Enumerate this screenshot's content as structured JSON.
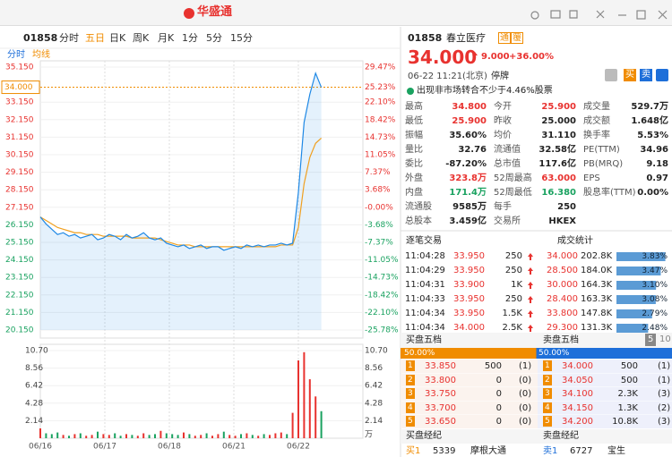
{
  "window": {
    "title": "华盛通"
  },
  "toolbar": {
    "code": "01858",
    "periods": [
      "分时",
      "五日",
      "日K",
      "周K",
      "月K",
      "1分",
      "5分",
      "15分"
    ],
    "active": 1
  },
  "legend": {
    "line": "分时",
    "avg": "均线"
  },
  "intraday_chart": {
    "type": "line",
    "ylim": [
      20.15,
      35.15
    ],
    "yticks": [
      {
        "value": 35.15,
        "label": "35.150"
      },
      {
        "value": 34,
        "label": "34.000"
      },
      {
        "value": 33.15,
        "label": "33.150"
      },
      {
        "value": 32.15,
        "label": "32.150"
      },
      {
        "value": 31.15,
        "label": "31.150"
      },
      {
        "value": 30.15,
        "label": "30.150"
      },
      {
        "value": 29.15,
        "label": "29.150"
      },
      {
        "value": 28.15,
        "label": "28.150"
      },
      {
        "value": 27.15,
        "label": "27.150"
      },
      {
        "value": 26.15,
        "label": "26.150"
      },
      {
        "value": 25.15,
        "label": "25.150"
      },
      {
        "value": 24.15,
        "label": "24.150"
      },
      {
        "value": 23.15,
        "label": "23.150"
      },
      {
        "value": 22.15,
        "label": "22.150"
      },
      {
        "value": 21.15,
        "label": "21.150"
      },
      {
        "value": 20.15,
        "label": "20.150"
      }
    ],
    "pct_labels": [
      "29.47%",
      "25.23%",
      "22.10%",
      "18.42%",
      "14.73%",
      "11.05%",
      "7.37%",
      "3.68%",
      "-0.00%",
      "-3.68%",
      "-7.37%",
      "-11.05%",
      "-14.73%",
      "-18.42%",
      "-22.10%",
      "-25.78%"
    ],
    "highlight_tick": 1,
    "dates": [
      "06/16",
      "06/17",
      "06/18",
      "06/21",
      "06/22"
    ],
    "price": [
      26.6,
      26.2,
      25.9,
      25.6,
      25.7,
      25.5,
      25.6,
      25.4,
      25.5,
      25.6,
      25.3,
      25.4,
      25.6,
      25.5,
      25.3,
      25.6,
      25.4,
      25.5,
      25.7,
      25.4,
      25.3,
      25.4,
      25.1,
      25.0,
      24.9,
      25.0,
      24.8,
      24.9,
      25.0,
      24.8,
      24.9,
      24.9,
      24.7,
      24.8,
      24.9,
      24.8,
      25.0,
      24.9,
      25.0,
      24.9,
      25.0,
      25.0,
      25.1,
      25.0,
      25.1,
      28.0,
      32.0,
      33.6,
      34.8,
      34.0
    ],
    "avg": [
      26.6,
      26.4,
      26.2,
      26.0,
      25.9,
      25.8,
      25.7,
      25.7,
      25.6,
      25.6,
      25.6,
      25.5,
      25.5,
      25.5,
      25.5,
      25.5,
      25.4,
      25.4,
      25.4,
      25.4,
      25.4,
      25.3,
      25.2,
      25.1,
      25.0,
      25.0,
      25.0,
      24.9,
      24.9,
      24.9,
      24.9,
      24.9,
      24.9,
      24.9,
      24.9,
      24.9,
      24.9,
      24.9,
      24.9,
      24.9,
      24.9,
      24.9,
      25.0,
      25.0,
      25.0,
      26.0,
      28.5,
      30.0,
      30.8,
      31.1
    ],
    "line_color": "#1e88e5",
    "avg_color": "#f0a020"
  },
  "volume_chart": {
    "type": "bar",
    "ylim": [
      0,
      10.7
    ],
    "yticks": [
      {
        "value": 10.7,
        "label": "10.70"
      },
      8.56,
      6.42,
      4.28,
      2.14
    ],
    "unit": "万",
    "values": [
      1.2,
      0.6,
      0.5,
      0.7,
      0.4,
      0.3,
      0.5,
      0.6,
      0.3,
      0.4,
      0.8,
      0.5,
      0.4,
      0.6,
      0.3,
      0.5,
      0.4,
      0.3,
      0.6,
      0.4,
      0.5,
      0.9,
      0.6,
      0.5,
      0.4,
      0.7,
      0.5,
      0.3,
      0.4,
      0.6,
      0.3,
      0.5,
      0.8,
      0.4,
      0.3,
      0.5,
      0.6,
      0.4,
      0.3,
      0.5,
      0.4,
      0.6,
      0.7,
      0.5,
      3.1,
      9.5,
      10.5,
      7.2,
      5.1,
      3.3
    ],
    "up_color": "#e8322f",
    "down_color": "#1aa260"
  },
  "quote": {
    "code": "01858",
    "name": "春立医疗",
    "badges": [
      "通",
      "覆"
    ],
    "price": "34.000",
    "change": "9.000",
    "change_pct": "+36.00%",
    "time": "06-22 11:21(北京)",
    "status": "停牌",
    "buy": "买",
    "sell": "卖",
    "notice": "出现非市场转合不少于4.46%股票"
  },
  "stats": [
    [
      [
        "最高",
        "34.800"
      ],
      [
        "今开",
        "25.900"
      ],
      [
        "成交量",
        "529.7万"
      ]
    ],
    [
      [
        "最低",
        "25.900"
      ],
      [
        "昨收",
        "25.000"
      ],
      [
        "成交额",
        "1.648亿"
      ]
    ],
    [
      [
        "振幅",
        "35.60%"
      ],
      [
        "均价",
        "31.110"
      ],
      [
        "换手率",
        "5.53%"
      ]
    ],
    [
      [
        "量比",
        "32.76"
      ],
      [
        "流通值",
        "32.58亿"
      ],
      [
        "PE(TTM)",
        "34.96"
      ]
    ],
    [
      [
        "委比",
        "-87.20%"
      ],
      [
        "总市值",
        "117.6亿"
      ],
      [
        "PB(MRQ)",
        "9.18"
      ]
    ],
    [
      [
        "外盘",
        "323.8万"
      ],
      [
        "52周最高",
        "63.000"
      ],
      [
        "EPS",
        "0.97"
      ]
    ],
    [
      [
        "内盘",
        "171.4万"
      ],
      [
        "52周最低",
        "16.380"
      ],
      [
        "股息率(TTM)",
        "0.00%"
      ]
    ],
    [
      [
        "流通股",
        "9585万"
      ],
      [
        "每手",
        "250"
      ]
    ],
    [
      [
        "总股本",
        "3.459亿"
      ],
      [
        "交易所",
        "HKEX"
      ]
    ]
  ],
  "trades": {
    "title": "逐笔交易",
    "rows": [
      [
        "11:04:28",
        "33.950",
        "250"
      ],
      [
        "11:04:29",
        "33.950",
        "250"
      ],
      [
        "11:04:31",
        "33.900",
        "1K"
      ],
      [
        "11:04:33",
        "33.950",
        "250"
      ],
      [
        "11:04:34",
        "33.950",
        "1.5K"
      ],
      [
        "11:04:34",
        "34.000",
        "2.5K"
      ]
    ]
  },
  "volume_stats": {
    "title": "成交统计",
    "rows": [
      [
        "34.000",
        "202.8K"
      ],
      [
        "28.500",
        "184.0K"
      ],
      [
        "30.000",
        "164.3K"
      ],
      [
        "28.400",
        "163.3K"
      ],
      [
        "33.800",
        "147.8K"
      ],
      [
        "29.300",
        "131.3K"
      ]
    ],
    "shares": [
      {
        "value": 3.83,
        "label": "3.83%"
      },
      {
        "value": 3.47,
        "label": "3.47%"
      },
      {
        "value": 3.1,
        "label": "3.10%"
      },
      {
        "value": 3.08,
        "label": "3.08%"
      },
      {
        "value": 2.79,
        "label": "2.79%"
      },
      {
        "value": 2.48,
        "label": "2.48%"
      }
    ],
    "share_max": 4
  },
  "order_book": {
    "bid_title": "买盘五档",
    "ask_title": "卖盘五档",
    "depth": [
      "5",
      "10"
    ],
    "bid_ratio": {
      "value": 50,
      "label": "50.00%"
    },
    "ask_ratio": {
      "value": 50,
      "label": "50.00%"
    },
    "bids": [
      [
        "1",
        "33.850",
        "500",
        "(1)"
      ],
      [
        "2",
        "33.800",
        "0",
        "(0)"
      ],
      [
        "3",
        "33.750",
        "0",
        "(0)"
      ],
      [
        "4",
        "33.700",
        "0",
        "(0)"
      ],
      [
        "5",
        "33.650",
        "0",
        "(0)"
      ]
    ],
    "asks": [
      [
        "1",
        "34.000",
        "500",
        "(1)"
      ],
      [
        "2",
        "34.050",
        "500",
        "(1)"
      ],
      [
        "3",
        "34.100",
        "2.3K",
        "(3)"
      ],
      [
        "4",
        "34.150",
        "1.3K",
        "(2)"
      ],
      [
        "5",
        "34.200",
        "10.8K",
        "(3)"
      ]
    ]
  },
  "brokers": {
    "bid_title": "买盘经纪",
    "ask_title": "卖盘经纪",
    "bid": [
      "买1",
      "5339",
      "摩根大通"
    ],
    "ask": [
      "卖1",
      "6727",
      "宝生"
    ]
  }
}
